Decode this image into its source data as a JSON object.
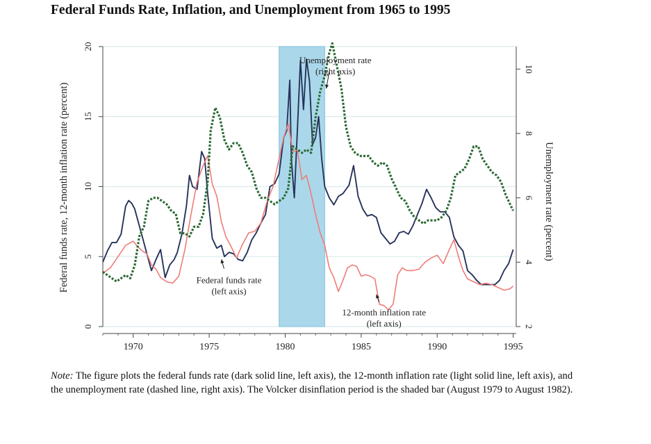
{
  "title": "Federal Funds Rate, Inflation, and Unemployment from 1965 to 1995",
  "note": {
    "label": "Note:",
    "text": " The figure plots the federal funds rate (dark solid line, left axis), the 12-month inflation rate (light solid line, left axis), and the unemployment rate (dashed line, right axis). The Volcker disinflation period is the shaded bar (August 1979 to August 1982)."
  },
  "colors": {
    "fed_funds": "#27325a",
    "inflation": "#ef7c78",
    "unemployment": "#2c6a35",
    "shade": "#aad8ea",
    "grid": "#dcecee"
  },
  "chart_data": {
    "type": "line",
    "xlabel": "",
    "ylabel": "Federal funds rate, 12-month inflation rate (percent)",
    "y2label": "Unemployment rate (percent)",
    "xlim": [
      1968,
      1995.2
    ],
    "ylim": [
      0,
      20
    ],
    "y2lim": [
      2,
      10.7
    ],
    "xticks": [
      "1970",
      "1975",
      "1980",
      "1985",
      "1990",
      "1995"
    ],
    "yticks": [
      "0",
      "5",
      "10",
      "15",
      "20"
    ],
    "y2ticks": [
      "2",
      "4",
      "6",
      "8",
      "10"
    ],
    "grid": true,
    "shaded_period": {
      "start": 1979.6,
      "end": 1982.6
    },
    "annotations": [
      {
        "lines": [
          "Unemployment rate",
          "(right axis)"
        ],
        "x": 1983.3,
        "y": 18.8,
        "arrow_to": [
          1982.7,
          17.0
        ]
      },
      {
        "lines": [
          "Federal funds rate",
          "(left axis)"
        ],
        "x": 1976.3,
        "y": 3.1,
        "arrow_to": [
          1975.8,
          4.8
        ]
      },
      {
        "lines": [
          "12-month inflation rate",
          "(left axis)"
        ],
        "x": 1986.5,
        "y": 0.8,
        "arrow_to": [
          1986.0,
          2.3
        ]
      }
    ],
    "series": [
      {
        "name": "Federal funds rate",
        "axis": "left",
        "style": "solid",
        "x": [
          1968.0,
          1968.3,
          1968.6,
          1968.9,
          1969.2,
          1969.5,
          1969.7,
          1969.9,
          1970.1,
          1970.3,
          1970.6,
          1970.9,
          1971.2,
          1971.5,
          1971.8,
          1972.1,
          1972.4,
          1972.7,
          1972.9,
          1973.2,
          1973.5,
          1973.7,
          1973.9,
          1974.2,
          1974.5,
          1974.7,
          1974.9,
          1975.2,
          1975.5,
          1975.8,
          1976.0,
          1976.3,
          1976.6,
          1976.9,
          1977.2,
          1977.5,
          1977.8,
          1978.1,
          1978.4,
          1978.7,
          1979.0,
          1979.3,
          1979.6,
          1979.9,
          1980.1,
          1980.3,
          1980.4,
          1980.6,
          1980.8,
          1981.0,
          1981.2,
          1981.4,
          1981.6,
          1981.8,
          1982.0,
          1982.2,
          1982.4,
          1982.6,
          1982.9,
          1983.2,
          1983.5,
          1983.8,
          1984.2,
          1984.5,
          1984.8,
          1985.1,
          1985.4,
          1985.7,
          1986.0,
          1986.3,
          1986.6,
          1986.9,
          1987.2,
          1987.5,
          1987.8,
          1988.1,
          1988.4,
          1988.7,
          1989.0,
          1989.3,
          1989.6,
          1989.9,
          1990.2,
          1990.5,
          1990.8,
          1991.1,
          1991.4,
          1991.7,
          1992.0,
          1992.3,
          1992.6,
          1992.9,
          1993.2,
          1993.5,
          1993.8,
          1994.1,
          1994.4,
          1994.7,
          1995.0
        ],
        "y": [
          4.6,
          5.4,
          6.0,
          6.0,
          6.6,
          8.6,
          9.0,
          8.8,
          8.4,
          7.6,
          6.4,
          5.2,
          4.0,
          4.8,
          5.5,
          3.5,
          4.4,
          4.8,
          5.3,
          6.6,
          8.6,
          10.8,
          10.0,
          9.8,
          12.5,
          12.0,
          9.5,
          6.3,
          5.6,
          5.8,
          5.0,
          5.3,
          5.2,
          4.8,
          4.7,
          5.3,
          6.2,
          6.7,
          7.4,
          8.0,
          10.0,
          10.2,
          10.9,
          13.5,
          14.0,
          17.6,
          12.0,
          9.2,
          14.0,
          19.0,
          15.5,
          19.1,
          17.5,
          13.0,
          13.5,
          15.0,
          12.0,
          10.0,
          9.2,
          8.7,
          9.3,
          9.5,
          10.1,
          11.5,
          9.3,
          8.4,
          7.9,
          8.0,
          7.8,
          6.7,
          6.3,
          5.9,
          6.1,
          6.7,
          6.8,
          6.6,
          7.2,
          8.0,
          8.8,
          9.8,
          9.2,
          8.5,
          8.2,
          8.2,
          7.8,
          6.4,
          5.8,
          5.4,
          4.0,
          3.7,
          3.3,
          3.0,
          3.0,
          3.0,
          3.0,
          3.3,
          4.0,
          4.5,
          5.5
        ]
      },
      {
        "name": "12-month inflation rate",
        "axis": "left",
        "style": "solid",
        "x": [
          1968.0,
          1968.5,
          1969.0,
          1969.5,
          1970.0,
          1970.3,
          1970.6,
          1970.9,
          1971.2,
          1971.5,
          1971.8,
          1972.2,
          1972.6,
          1973.0,
          1973.4,
          1973.8,
          1974.2,
          1974.6,
          1974.9,
          1975.2,
          1975.5,
          1975.8,
          1976.1,
          1976.4,
          1976.8,
          1977.2,
          1977.6,
          1978.0,
          1978.4,
          1978.8,
          1979.2,
          1979.6,
          1979.9,
          1980.2,
          1980.5,
          1980.8,
          1981.1,
          1981.4,
          1981.7,
          1982.0,
          1982.3,
          1982.6,
          1982.9,
          1983.2,
          1983.5,
          1983.8,
          1984.1,
          1984.4,
          1984.7,
          1985.0,
          1985.3,
          1985.6,
          1985.9,
          1986.2,
          1986.5,
          1986.8,
          1987.1,
          1987.4,
          1987.7,
          1988.0,
          1988.4,
          1988.8,
          1989.2,
          1989.6,
          1990.0,
          1990.4,
          1990.8,
          1991.1,
          1991.4,
          1991.7,
          1992.0,
          1992.4,
          1992.8,
          1993.2,
          1993.6,
          1994.0,
          1994.4,
          1994.8,
          1995.0
        ],
        "y": [
          3.8,
          4.2,
          5.0,
          5.8,
          6.1,
          5.7,
          5.4,
          5.2,
          4.4,
          4.1,
          3.5,
          3.2,
          3.1,
          3.6,
          5.5,
          8.0,
          10.3,
          11.5,
          12.2,
          10.2,
          9.3,
          7.5,
          6.4,
          5.8,
          4.9,
          5.9,
          6.7,
          6.8,
          7.4,
          8.9,
          10.0,
          12.0,
          13.5,
          14.5,
          12.5,
          12.6,
          10.5,
          10.8,
          9.5,
          8.0,
          6.7,
          5.8,
          4.2,
          3.5,
          2.5,
          3.3,
          4.2,
          4.4,
          4.3,
          3.6,
          3.7,
          3.6,
          3.4,
          1.6,
          1.5,
          1.2,
          1.6,
          3.7,
          4.2,
          4.0,
          4.0,
          4.1,
          4.6,
          4.9,
          5.1,
          4.5,
          5.5,
          6.2,
          5.0,
          4.0,
          3.4,
          3.2,
          3.0,
          3.1,
          3.0,
          2.8,
          2.6,
          2.7,
          2.9
        ]
      },
      {
        "name": "Unemployment rate",
        "axis": "right",
        "style": "dashed",
        "x": [
          1968.0,
          1968.3,
          1968.6,
          1968.9,
          1969.2,
          1969.5,
          1969.8,
          1970.1,
          1970.4,
          1970.7,
          1971.0,
          1971.3,
          1971.6,
          1971.9,
          1972.2,
          1972.5,
          1972.8,
          1973.1,
          1973.4,
          1973.7,
          1974.0,
          1974.3,
          1974.6,
          1974.9,
          1975.1,
          1975.4,
          1975.7,
          1976.0,
          1976.3,
          1976.6,
          1976.9,
          1977.2,
          1977.5,
          1977.8,
          1978.1,
          1978.4,
          1978.7,
          1979.0,
          1979.3,
          1979.6,
          1979.9,
          1980.2,
          1980.5,
          1980.8,
          1981.1,
          1981.4,
          1981.7,
          1982.0,
          1982.3,
          1982.6,
          1982.9,
          1983.1,
          1983.4,
          1983.7,
          1984.0,
          1984.3,
          1984.6,
          1984.9,
          1985.2,
          1985.5,
          1985.8,
          1986.1,
          1986.4,
          1986.7,
          1987.0,
          1987.3,
          1987.6,
          1987.9,
          1988.2,
          1988.5,
          1988.8,
          1989.1,
          1989.4,
          1989.7,
          1990.0,
          1990.3,
          1990.6,
          1990.9,
          1991.2,
          1991.5,
          1991.8,
          1992.1,
          1992.4,
          1992.7,
          1993.0,
          1993.3,
          1993.6,
          1993.9,
          1994.2,
          1994.5,
          1994.8,
          1995.0
        ],
        "y": [
          3.7,
          3.6,
          3.5,
          3.4,
          3.5,
          3.6,
          3.5,
          3.9,
          4.8,
          5.1,
          5.9,
          6.0,
          6.0,
          5.9,
          5.8,
          5.6,
          5.5,
          4.9,
          4.9,
          4.8,
          5.1,
          5.1,
          5.5,
          6.5,
          8.1,
          8.8,
          8.5,
          7.8,
          7.5,
          7.7,
          7.7,
          7.4,
          7.0,
          6.8,
          6.3,
          6.0,
          6.0,
          5.9,
          5.8,
          5.9,
          6.0,
          6.3,
          7.6,
          7.5,
          7.4,
          7.5,
          7.4,
          8.5,
          9.3,
          9.8,
          10.5,
          10.8,
          10.1,
          9.4,
          8.2,
          7.6,
          7.4,
          7.3,
          7.3,
          7.3,
          7.1,
          7.0,
          7.1,
          7.0,
          6.6,
          6.3,
          6.0,
          5.9,
          5.6,
          5.4,
          5.3,
          5.2,
          5.3,
          5.3,
          5.3,
          5.4,
          5.6,
          6.0,
          6.7,
          6.8,
          6.9,
          7.2,
          7.6,
          7.6,
          7.2,
          7.0,
          6.8,
          6.7,
          6.5,
          6.1,
          5.8,
          5.6
        ]
      }
    ]
  }
}
